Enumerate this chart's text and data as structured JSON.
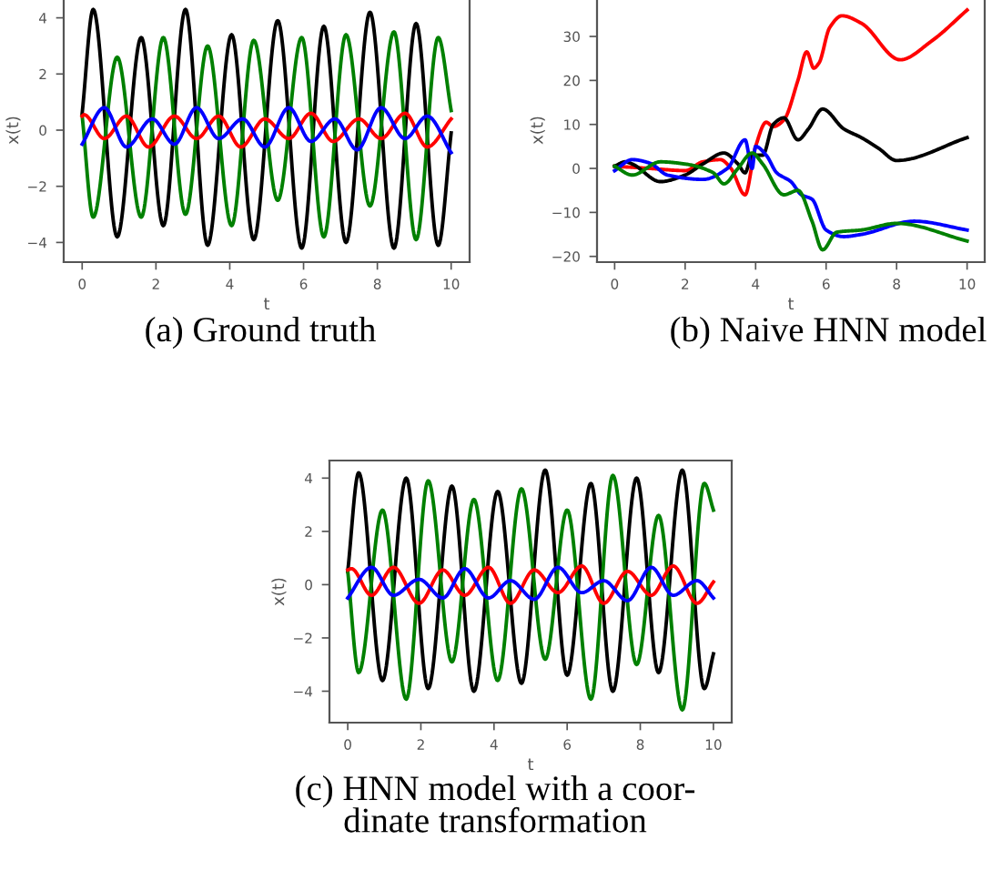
{
  "chart_data": [
    {
      "type": "line",
      "title": "(a) Ground truth",
      "xlabel": "t",
      "ylabel": "x(t)",
      "xlim": [
        -0.5,
        10.5
      ],
      "ylim": [
        -4.7,
        4.7
      ],
      "xticks": [
        0,
        2,
        4,
        6,
        8,
        10
      ],
      "yticks": [
        -4,
        -2,
        0,
        2,
        4
      ],
      "grid": false,
      "legend": false,
      "marker": "none",
      "line_style": "solid",
      "series": [
        {
          "color": "#000000",
          "x": [
            0,
            0.3,
            0.95,
            1.6,
            2.2,
            2.8,
            3.4,
            4.05,
            4.65,
            5.3,
            5.95,
            6.55,
            7.15,
            7.8,
            8.45,
            9.05,
            9.65,
            10
          ],
          "values": [
            0.6,
            4.3,
            -3.8,
            3.3,
            -3.4,
            4.3,
            -4.1,
            3.4,
            -3.9,
            3.9,
            -4.2,
            3.7,
            -4.0,
            4.2,
            -4.2,
            3.8,
            -4.1,
            -0.1
          ]
        },
        {
          "color": "#008000",
          "x": [
            0,
            0.3,
            0.95,
            1.6,
            2.2,
            2.8,
            3.4,
            4.05,
            4.65,
            5.3,
            5.95,
            6.55,
            7.15,
            7.8,
            8.45,
            9.05,
            9.65,
            10
          ],
          "values": [
            0.5,
            -3.1,
            2.6,
            -3.1,
            3.3,
            -3.0,
            3.0,
            -3.4,
            3.2,
            -2.5,
            3.3,
            -3.8,
            3.4,
            -2.7,
            3.5,
            -3.9,
            3.3,
            0.7
          ]
        },
        {
          "color": "#ff0000",
          "x": [
            0,
            0.05,
            0.6,
            1.2,
            1.8,
            2.5,
            3.1,
            3.7,
            4.3,
            4.95,
            5.6,
            6.2,
            6.8,
            7.5,
            8.1,
            8.75,
            9.35,
            10
          ],
          "values": [
            0.5,
            0.55,
            -0.3,
            0.5,
            -0.6,
            0.5,
            -0.3,
            0.5,
            -0.6,
            0.4,
            -0.3,
            0.6,
            -0.4,
            0.4,
            -0.3,
            0.6,
            -0.6,
            0.4
          ]
        },
        {
          "color": "#0000ff",
          "x": [
            0,
            0.6,
            1.2,
            1.9,
            2.5,
            3.1,
            3.7,
            4.35,
            4.95,
            5.6,
            6.2,
            6.85,
            7.45,
            8.1,
            8.75,
            9.35,
            10
          ],
          "values": [
            -0.5,
            0.8,
            -0.6,
            0.4,
            -0.5,
            0.8,
            -0.3,
            0.4,
            -0.6,
            0.8,
            -0.4,
            0.4,
            -0.7,
            0.8,
            -0.3,
            0.5,
            -0.8
          ]
        }
      ]
    },
    {
      "type": "line",
      "title": "(b) Naive HNN model",
      "xlabel": "t",
      "ylabel": "x(t)",
      "xlim": [
        -0.5,
        10.5
      ],
      "ylim": [
        -21.3,
        38.7
      ],
      "xticks": [
        0,
        2,
        4,
        6,
        8,
        10
      ],
      "yticks": [
        -20,
        -10,
        0,
        10,
        20,
        30
      ],
      "grid": false,
      "legend": false,
      "marker": "none",
      "line_style": "solid",
      "series": [
        {
          "color": "#ff0000",
          "x": [
            0,
            1,
            2,
            2.5,
            3,
            3.3,
            3.7,
            4.0,
            4.3,
            4.5,
            4.8,
            5.2,
            5.45,
            5.65,
            5.8,
            6.1,
            6.45,
            7,
            8.1,
            9,
            10
          ],
          "values": [
            0.5,
            0,
            -0.5,
            1.5,
            2,
            0,
            -6,
            5,
            10.5,
            9.5,
            11,
            20,
            26.5,
            22.8,
            24,
            32,
            34.7,
            33,
            24.7,
            29,
            36
          ]
        },
        {
          "color": "#000000",
          "x": [
            0,
            0.3,
            0.5,
            1.3,
            2,
            2.5,
            3.1,
            3.5,
            3.7,
            3.9,
            4.2,
            4.5,
            4.8,
            5.2,
            5.5,
            5.9,
            6.5,
            7,
            7.5,
            8,
            10
          ],
          "values": [
            0.5,
            1.5,
            1,
            -3,
            -1.5,
            1,
            3.5,
            1,
            -1,
            3,
            3,
            10,
            11.5,
            6.5,
            9,
            13.5,
            9,
            7,
            4.5,
            1.8,
            7
          ]
        },
        {
          "color": "#0000ff",
          "x": [
            0,
            0.5,
            1.0,
            1.5,
            2.5,
            3.2,
            3.7,
            3.9,
            4.0,
            4.3,
            4.6,
            5,
            5.3,
            5.6,
            6.0,
            6.5,
            7.0,
            8.5,
            10
          ],
          "values": [
            -0.5,
            2,
            1.2,
            -1.5,
            -2.5,
            0,
            6.5,
            0,
            5,
            3,
            -1,
            -3,
            -6,
            -7,
            -14,
            -15.5,
            -15,
            -12,
            -14
          ]
        },
        {
          "color": "#008000",
          "x": [
            0,
            0.5,
            1.3,
            2,
            2.8,
            3.1,
            3.5,
            3.9,
            4.2,
            4.8,
            5.2,
            5.6,
            5.9,
            6.3,
            7,
            8,
            10
          ],
          "values": [
            0.5,
            -1.5,
            1.5,
            1,
            -1,
            -3.5,
            0,
            3.5,
            1,
            -6,
            -5,
            -12,
            -18.5,
            -14.5,
            -14,
            -12.5,
            -16.5
          ]
        }
      ]
    },
    {
      "type": "line",
      "title": "(c) HNN model with a coor-\ndinate transformation",
      "xlabel": "t",
      "ylabel": "x(t)",
      "xlim": [
        -0.5,
        10.5
      ],
      "ylim": [
        -5.18,
        4.66
      ],
      "xticks": [
        0,
        2,
        4,
        6,
        8,
        10
      ],
      "yticks": [
        -4,
        -2,
        0,
        2,
        4
      ],
      "grid": false,
      "legend": false,
      "marker": "none",
      "line_style": "solid",
      "series": [
        {
          "color": "#000000",
          "x": [
            0,
            0.3,
            0.95,
            1.6,
            2.2,
            2.85,
            3.45,
            4.1,
            4.75,
            5.4,
            6.0,
            6.65,
            7.25,
            7.9,
            8.5,
            9.15,
            9.75,
            10
          ],
          "values": [
            0.5,
            4.2,
            -3.6,
            4.0,
            -3.9,
            3.7,
            -4.0,
            3.5,
            -3.7,
            4.3,
            -3.4,
            3.8,
            -4.0,
            4.0,
            -3.3,
            4.3,
            -3.9,
            -2.6
          ]
        },
        {
          "color": "#008000",
          "x": [
            0,
            0.3,
            0.95,
            1.6,
            2.2,
            2.85,
            3.45,
            4.1,
            4.75,
            5.4,
            6.0,
            6.65,
            7.25,
            7.9,
            8.5,
            9.15,
            9.75,
            10
          ],
          "values": [
            0.5,
            -3.3,
            2.8,
            -4.3,
            3.9,
            -2.9,
            3.2,
            -3.6,
            3.6,
            -2.8,
            2.8,
            -4.3,
            4.1,
            -3.0,
            2.6,
            -4.7,
            3.8,
            2.8
          ]
        },
        {
          "color": "#ff0000",
          "x": [
            0,
            0.1,
            0.65,
            1.25,
            1.95,
            2.6,
            3.2,
            3.85,
            4.45,
            5.1,
            5.75,
            6.4,
            7.0,
            7.65,
            8.3,
            8.9,
            9.55,
            10
          ],
          "values": [
            0.55,
            0.6,
            -0.4,
            0.65,
            -0.7,
            0.55,
            -0.4,
            0.65,
            -0.7,
            0.55,
            -0.3,
            0.7,
            -0.7,
            0.5,
            -0.4,
            0.7,
            -0.7,
            0.1
          ]
        },
        {
          "color": "#0000ff",
          "x": [
            0,
            0.65,
            1.25,
            1.95,
            2.6,
            3.2,
            3.85,
            4.45,
            5.1,
            5.75,
            6.4,
            7.0,
            7.65,
            8.3,
            8.9,
            9.55,
            10
          ],
          "values": [
            -0.5,
            0.65,
            -0.4,
            0.2,
            -0.5,
            0.6,
            -0.5,
            0.15,
            -0.55,
            0.65,
            -0.3,
            0.15,
            -0.6,
            0.65,
            -0.4,
            0.15,
            -0.5
          ]
        }
      ]
    }
  ]
}
